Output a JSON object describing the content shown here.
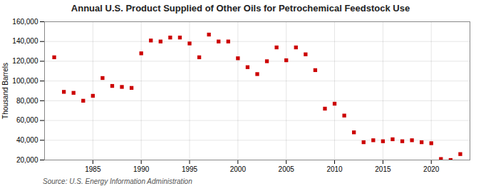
{
  "chart_data": {
    "type": "scatter",
    "title": "Annual U.S. Product Supplied of Other Oils for Petrochemical Feedstock Use",
    "ylabel": "Thousand Barrels",
    "source": "Source: U.S. Energy Information Administration",
    "x": [
      1981,
      1982,
      1983,
      1984,
      1985,
      1986,
      1987,
      1988,
      1989,
      1990,
      1991,
      1992,
      1993,
      1994,
      1995,
      1996,
      1997,
      1998,
      1999,
      2000,
      2001,
      2002,
      2003,
      2004,
      2005,
      2006,
      2007,
      2008,
      2009,
      2010,
      2011,
      2012,
      2013,
      2014,
      2015,
      2016,
      2017,
      2018,
      2019,
      2020,
      2021,
      2022,
      2023
    ],
    "values": [
      124000,
      89000,
      88000,
      80000,
      85000,
      103000,
      95000,
      94000,
      93000,
      128000,
      141000,
      140000,
      144000,
      144000,
      138000,
      124000,
      147000,
      140000,
      140000,
      123000,
      114000,
      107000,
      120000,
      134000,
      121000,
      134000,
      127000,
      111000,
      72000,
      77000,
      65000,
      48000,
      38000,
      40000,
      39000,
      41000,
      39000,
      40000,
      38000,
      37000,
      21000,
      20000,
      26000
    ],
    "color": "#cc0000",
    "marker": "square",
    "xlim": [
      1980,
      2024
    ],
    "xticks": [
      1985,
      1990,
      1995,
      2000,
      2005,
      2010,
      2015,
      2020
    ],
    "ylim": [
      20000,
      160000
    ],
    "yticks": [
      {
        "value": 20000,
        "label": "20,000"
      },
      {
        "value": 40000,
        "label": "40,000"
      },
      {
        "value": 60000,
        "label": "60,000"
      },
      {
        "value": 80000,
        "label": "80,000"
      },
      {
        "value": 100000,
        "label": "100,000"
      },
      {
        "value": 120000,
        "label": "120,000"
      },
      {
        "value": 140000,
        "label": "140,000"
      },
      {
        "value": 160000,
        "label": "160,000"
      }
    ],
    "grid": true
  }
}
